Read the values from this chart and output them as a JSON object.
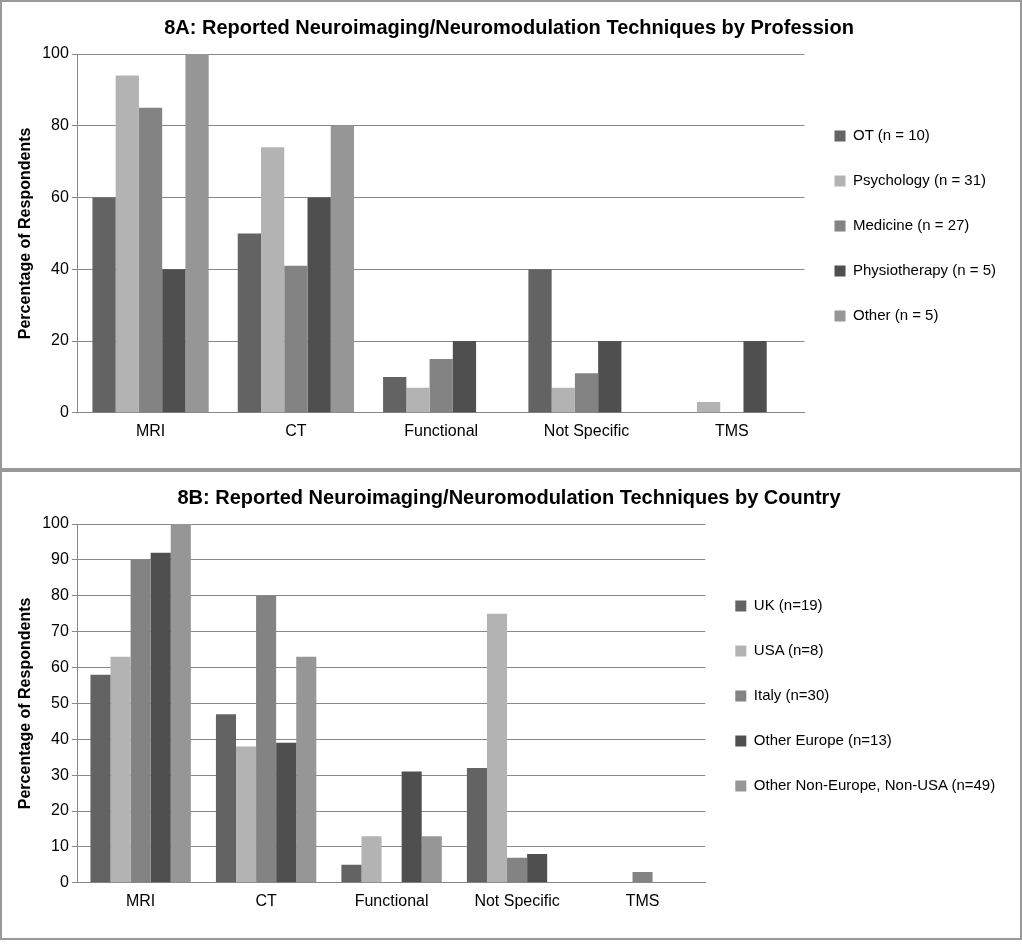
{
  "chart_data": [
    {
      "type": "bar",
      "title": "8A: Reported Neuroimaging/Neuromodulation Techniques by Profession",
      "ylabel": "Percentage of Respondents",
      "categories": [
        "MRI",
        "CT",
        "Functional",
        "Not Specific",
        "TMS"
      ],
      "series": [
        {
          "name": "OT (n = 10)",
          "color": "#636363",
          "values": [
            60,
            50,
            10,
            40,
            0
          ]
        },
        {
          "name": "Psychology (n = 31)",
          "color": "#b3b3b3",
          "values": [
            94,
            74,
            7,
            7,
            3
          ]
        },
        {
          "name": "Medicine (n = 27)",
          "color": "#838383",
          "values": [
            85,
            41,
            15,
            11,
            0
          ]
        },
        {
          "name": "Physiotherapy (n = 5)",
          "color": "#4f4f4f",
          "values": [
            40,
            60,
            20,
            20,
            20
          ]
        },
        {
          "name": "Other (n = 5)",
          "color": "#969696",
          "values": [
            100,
            80,
            0,
            0,
            0
          ]
        }
      ],
      "ylim": [
        0,
        100
      ],
      "yticks": [
        0,
        20,
        40,
        60,
        80,
        100
      ],
      "grid": "y",
      "legend": "right"
    },
    {
      "type": "bar",
      "title": "8B: Reported Neuroimaging/Neuromodulation Techniques by Country",
      "ylabel": "Percentage of Respondents",
      "categories": [
        "MRI",
        "CT",
        "Functional",
        "Not Specific",
        "TMS"
      ],
      "series": [
        {
          "name": "UK (n=19)",
          "color": "#636363",
          "values": [
            58,
            47,
            5,
            32,
            0
          ]
        },
        {
          "name": "USA (n=8)",
          "color": "#b3b3b3",
          "values": [
            63,
            38,
            13,
            75,
            0
          ]
        },
        {
          "name": "Italy (n=30)",
          "color": "#838383",
          "values": [
            90,
            80,
            0,
            7,
            3
          ]
        },
        {
          "name": "Other Europe (n=13)",
          "color": "#4f4f4f",
          "values": [
            92,
            39,
            31,
            8,
            0
          ]
        },
        {
          "name": "Other Non-Europe, Non-USA (n=49)",
          "color": "#969696",
          "values": [
            100,
            63,
            13,
            0,
            0
          ]
        }
      ],
      "ylim": [
        0,
        100
      ],
      "yticks": [
        0,
        10,
        20,
        30,
        40,
        50,
        60,
        70,
        80,
        90,
        100
      ],
      "grid": "y",
      "legend": "right"
    }
  ]
}
